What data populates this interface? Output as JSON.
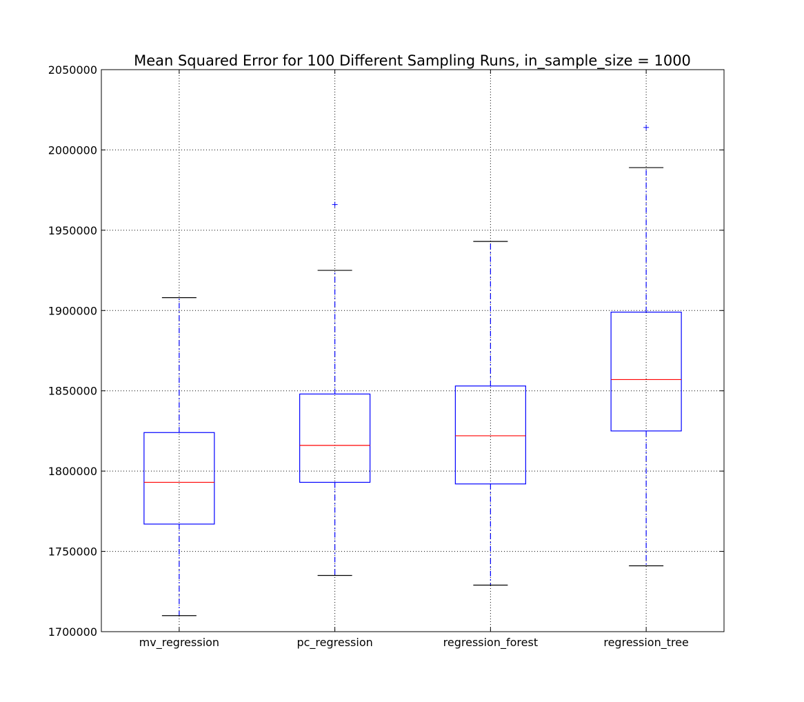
{
  "chart_data": {
    "type": "box",
    "title": "Mean Squared Error for 100 Different Sampling Runs, in_sample_size = 1000",
    "xlabel": "",
    "ylabel": "",
    "ylim": [
      1700000,
      2050000
    ],
    "yticks": [
      1700000,
      1750000,
      1800000,
      1850000,
      1900000,
      1950000,
      2000000,
      2050000
    ],
    "grid": true,
    "categories": [
      "mv_regression",
      "pc_regression",
      "regression_forest",
      "regression_tree"
    ],
    "boxes": [
      {
        "name": "mv_regression",
        "whisker_low": 1710000,
        "q1": 1767000,
        "median": 1793000,
        "q3": 1824000,
        "whisker_high": 1908000,
        "outliers": []
      },
      {
        "name": "pc_regression",
        "whisker_low": 1735000,
        "q1": 1793000,
        "median": 1816000,
        "q3": 1848000,
        "whisker_high": 1925000,
        "outliers": [
          1966000
        ]
      },
      {
        "name": "regression_forest",
        "whisker_low": 1729000,
        "q1": 1792000,
        "median": 1822000,
        "q3": 1853000,
        "whisker_high": 1943000,
        "outliers": []
      },
      {
        "name": "regression_tree",
        "whisker_low": 1741000,
        "q1": 1825000,
        "median": 1857000,
        "q3": 1899000,
        "whisker_high": 1989000,
        "outliers": [
          2014000
        ]
      }
    ],
    "colors": {
      "box": "#0000ff",
      "median": "#ff0000",
      "cap": "#000000",
      "flier": "#0000ff"
    }
  }
}
